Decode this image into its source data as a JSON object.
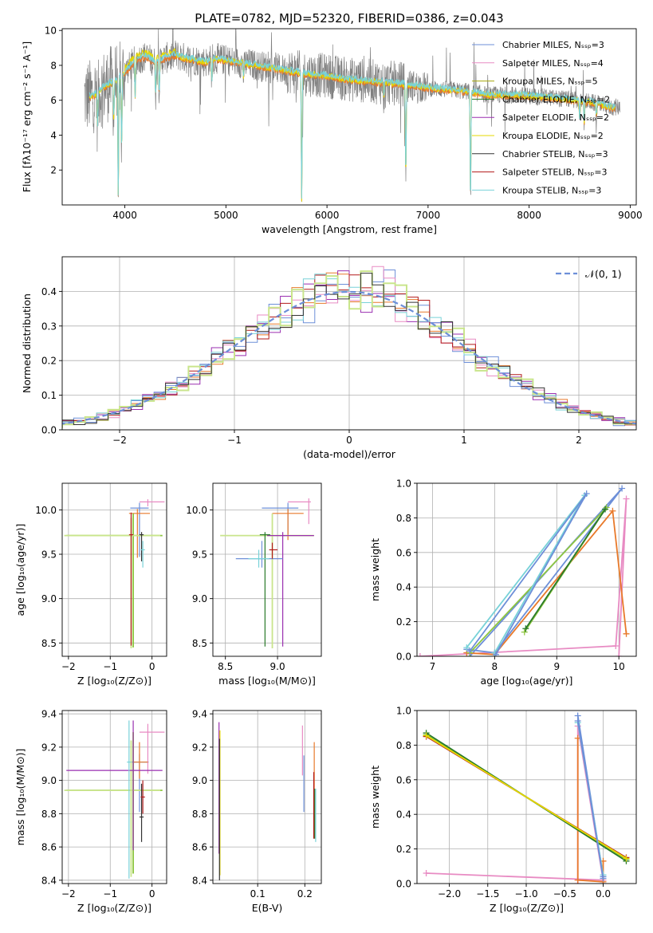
{
  "colors": {
    "chabrier_miles": "#6d8fd8",
    "salpeter_miles": "#e88bc3",
    "kroupa_miles": "#a6a60c",
    "chabrier_elodie": "#2a7a2a",
    "salpeter_elodie": "#9a2fb0",
    "kroupa_elodie": "#e6d800",
    "chabrier_stelib": "#333333",
    "salpeter_stelib": "#b21a1a",
    "kroupa_stelib": "#78d2d8",
    "data": "#808080",
    "orange": "#e8792a",
    "lime": "#8ec63f",
    "lightgreen": "#c9e58c",
    "gauss": "#6d8fd8"
  },
  "chart_data": [
    {
      "id": "spectrum",
      "type": "line",
      "title": "PLATE=0782, MJD=52320, FIBERID=0386, z=0.043",
      "xlabel": "wavelength [Angstrom, rest frame]",
      "ylabel": "Flux [fλ10⁻¹⁷ erg cm⁻² s⁻¹ A⁻¹]",
      "xlim": [
        3380,
        9060
      ],
      "ylim": [
        0,
        10.1
      ],
      "xticks": [
        "4000",
        "5000",
        "6000",
        "7000",
        "8000",
        "9000"
      ],
      "yticks": [
        "2",
        "4",
        "6",
        "8",
        "10"
      ],
      "legend_position": "top-right",
      "legend": [
        "Chabrier MILES, Nₛₛₚ=3",
        "Salpeter MILES, Nₛₛₚ=4",
        "Kroupa MILES, Nₛₛₚ=5",
        "Chabrier ELODIE, Nₛₛₚ=2",
        "Salpeter ELODIE, Nₛₛₚ=2",
        "Kroupa ELODIE, Nₛₛₚ=2",
        "Chabrier STELIB, Nₛₛₚ=3",
        "Salpeter STELIB, Nₛₛₚ=3",
        "Kroupa STELIB, Nₛₛₚ=3"
      ],
      "continuum": [
        [
          3650,
          6.2
        ],
        [
          3700,
          6.3
        ],
        [
          3800,
          6.8
        ],
        [
          3900,
          7.1
        ],
        [
          4000,
          7.6
        ],
        [
          4100,
          8.3
        ],
        [
          4200,
          8.5
        ],
        [
          4300,
          8.2
        ],
        [
          4400,
          8.4
        ],
        [
          4500,
          8.6
        ],
        [
          4600,
          8.4
        ],
        [
          4700,
          8.3
        ],
        [
          4800,
          8.2
        ],
        [
          4900,
          8.4
        ],
        [
          5000,
          8.3
        ],
        [
          5200,
          8.1
        ],
        [
          5400,
          7.9
        ],
        [
          5600,
          7.7
        ],
        [
          5800,
          7.5
        ],
        [
          6000,
          7.4
        ],
        [
          6200,
          7.2
        ],
        [
          6400,
          7.1
        ],
        [
          6600,
          7.0
        ],
        [
          6800,
          6.9
        ],
        [
          7000,
          6.7
        ],
        [
          7200,
          6.6
        ],
        [
          7400,
          6.5
        ],
        [
          7600,
          6.3
        ],
        [
          7800,
          6.3
        ],
        [
          8000,
          6.25
        ],
        [
          8200,
          6.15
        ],
        [
          8400,
          6.05
        ],
        [
          8600,
          5.9
        ],
        [
          8800,
          5.6
        ]
      ],
      "absorption_dips": [
        [
          3730,
          4.5
        ],
        [
          3890,
          5.0
        ],
        [
          3935,
          0.4
        ],
        [
          3968,
          3.2
        ],
        [
          4102,
          6.2
        ],
        [
          4305,
          6.3
        ],
        [
          4340,
          6.5
        ],
        [
          4861,
          7.2
        ],
        [
          5175,
          7.3
        ],
        [
          5750,
          0.3
        ],
        [
          6563,
          6.2
        ],
        [
          6780,
          1.8
        ],
        [
          7420,
          0.3
        ],
        [
          8500,
          5.0
        ],
        [
          8545,
          4.7
        ],
        [
          8665,
          5.2
        ]
      ],
      "data_range": [
        3600,
        8900
      ]
    },
    {
      "id": "residuals",
      "type": "histogram",
      "xlabel": "(data-model)/error",
      "ylabel": "Normed distribution",
      "xlim": [
        -2.5,
        2.5
      ],
      "ylim": [
        0,
        0.5
      ],
      "xticks": [
        "−2",
        "−1",
        "0",
        "1",
        "2"
      ],
      "yticks": [
        "0.0",
        "0.1",
        "0.2",
        "0.3",
        "0.4"
      ],
      "grid": true,
      "legend_position": "top-right",
      "legend": [
        "𝒩(0, 1)"
      ],
      "bin_width": 0.1,
      "gaussian": {
        "mean": 0,
        "sigma": 1
      }
    },
    {
      "id": "age_vs_Z",
      "type": "scatter",
      "xlabel": "Z [log₁₀(Z/Z⊙)]",
      "ylabel": "age  [log₁₀(age/yr)]",
      "xlim": [
        -2.15,
        0.35
      ],
      "ylim": [
        8.35,
        10.3
      ],
      "xticks": [
        "−2",
        "−1",
        "0"
      ],
      "yticks": [
        "8.5",
        "9.0",
        "9.5",
        "10.0"
      ],
      "grid": true,
      "errorbars": [
        {
          "x": -0.3,
          "y": 10.02,
          "xerr": [
            0.22,
            0.22
          ],
          "yerr": [
            0.55,
            0.06
          ],
          "c": "chabrier_miles"
        },
        {
          "x": -0.1,
          "y": 10.09,
          "xerr": [
            0.2,
            0.4
          ],
          "yerr": [
            0.05,
            0.03
          ],
          "c": "salpeter_miles"
        },
        {
          "x": -0.35,
          "y": 9.96,
          "xerr": [
            0.2,
            0.3
          ],
          "yerr": [
            0.5,
            0.05
          ],
          "c": "orange"
        },
        {
          "x": -0.45,
          "y": 9.71,
          "xerr": [
            1.6,
            0.7
          ],
          "yerr": [
            1.26,
            0.25
          ],
          "c": "lime"
        },
        {
          "x": -0.5,
          "y": 9.71,
          "xerr": [
            1.6,
            0.7
          ],
          "yerr": [
            1.27,
            0.2
          ],
          "c": "lightgreen"
        },
        {
          "x": -0.25,
          "y": 9.72,
          "xerr": [
            0.05,
            0.05
          ],
          "yerr": [
            0.3,
            0.03
          ],
          "c": "chabrier_stelib"
        },
        {
          "x": -0.22,
          "y": 9.55,
          "xerr": [
            0.05,
            0.05
          ],
          "yerr": [
            0.2,
            0.1
          ],
          "c": "kroupa_stelib"
        },
        {
          "x": -0.5,
          "y": 9.72,
          "xerr": [
            0.05,
            0.05
          ],
          "yerr": [
            1.25,
            0.25
          ],
          "c": "salpeter_stelib"
        }
      ]
    },
    {
      "id": "age_vs_mass",
      "type": "scatter",
      "xlabel": "mass [log₁₀(M/M⊙)]",
      "ylabel": "",
      "xlim": [
        8.38,
        9.42
      ],
      "ylim": [
        8.35,
        10.3
      ],
      "xticks": [
        "8.5",
        "9.0"
      ],
      "yticks": [
        "8.5",
        "9.0",
        "9.5",
        "10.0"
      ],
      "grid": true,
      "errorbars": [
        {
          "x": 9.1,
          "y": 10.02,
          "xerr": [
            0.25,
            0.1
          ],
          "yerr": [
            0.3,
            0.06
          ],
          "c": "chabrier_miles"
        },
        {
          "x": 9.3,
          "y": 10.09,
          "xerr": [
            0.2,
            0.02
          ],
          "yerr": [
            0.25,
            0.04
          ],
          "c": "salpeter_miles"
        },
        {
          "x": 9.1,
          "y": 9.96,
          "xerr": [
            0.15,
            0.15
          ],
          "yerr": [
            0.3,
            0.05
          ],
          "c": "orange"
        },
        {
          "x": 8.95,
          "y": 9.71,
          "xerr": [
            0.5,
            0.4
          ],
          "yerr": [
            1.27,
            0.25
          ],
          "c": "lightgreen"
        },
        {
          "x": 9.05,
          "y": 9.71,
          "xerr": [
            0.15,
            0.3
          ],
          "yerr": [
            1.25,
            0.04
          ],
          "c": "salpeter_elodie"
        },
        {
          "x": 8.85,
          "y": 9.45,
          "xerr": [
            0.25,
            0.2
          ],
          "yerr": [
            0.1,
            0.2
          ],
          "c": "chabrier_miles"
        },
        {
          "x": 8.88,
          "y": 9.72,
          "xerr": [
            0.05,
            0.05
          ],
          "yerr": [
            1.26,
            0.03
          ],
          "c": "chabrier_elodie"
        },
        {
          "x": 8.95,
          "y": 9.55,
          "xerr": [
            0.03,
            0.05
          ],
          "yerr": [
            0.1,
            0.08
          ],
          "c": "salpeter_stelib"
        },
        {
          "x": 8.82,
          "y": 9.45,
          "xerr": [
            0.1,
            0.1
          ],
          "yerr": [
            0.1,
            0.1
          ],
          "c": "kroupa_stelib"
        }
      ]
    },
    {
      "id": "weight_vs_age",
      "type": "line",
      "xlabel": "age  [log₁₀(age/yr)]",
      "ylabel": "mass weight",
      "xlim": [
        6.75,
        10.28
      ],
      "ylim": [
        0,
        1
      ],
      "xticks": [
        "7",
        "8",
        "9",
        "10"
      ],
      "yticks": [
        "0.0",
        "0.2",
        "0.4",
        "0.6",
        "0.8",
        "1.0"
      ],
      "grid": true,
      "series": [
        {
          "c": "salpeter_miles",
          "points": [
            [
              6.8,
              0.0
            ],
            [
              9.95,
              0.06
            ],
            [
              10.12,
              0.91
            ],
            [
              10.0,
              0.0
            ]
          ]
        },
        {
          "c": "chabrier_miles",
          "points": [
            [
              7.55,
              0.04
            ],
            [
              8.0,
              0.02
            ],
            [
              10.05,
              0.97
            ],
            [
              7.6,
              0.0
            ]
          ]
        },
        {
          "c": "orange",
          "points": [
            [
              7.55,
              0.02
            ],
            [
              8.0,
              0.01
            ],
            [
              9.9,
              0.84
            ],
            [
              10.12,
              0.13
            ]
          ]
        },
        {
          "c": "lime",
          "points": [
            [
              8.48,
              0.14
            ],
            [
              9.8,
              0.86
            ],
            [
              7.6,
              0.02
            ]
          ]
        },
        {
          "c": "chabrier_elodie",
          "points": [
            [
              8.5,
              0.16
            ],
            [
              9.78,
              0.85
            ]
          ]
        },
        {
          "c": "kroupa_stelib",
          "points": [
            [
              7.55,
              0.05
            ],
            [
              9.45,
              0.93
            ],
            [
              8.0,
              0.02
            ]
          ]
        },
        {
          "c": "chabrier_miles",
          "points": [
            [
              7.6,
              0.03
            ],
            [
              9.48,
              0.94
            ],
            [
              8.02,
              0.01
            ]
          ]
        }
      ]
    },
    {
      "id": "mass_vs_Z",
      "type": "scatter",
      "xlabel": "Z [log₁₀(Z/Z⊙)]",
      "ylabel": "mass [log₁₀(M/M⊙)]",
      "xlim": [
        -2.15,
        0.35
      ],
      "ylim": [
        8.38,
        9.42
      ],
      "xticks": [
        "−2",
        "−1",
        "0"
      ],
      "yticks": [
        "8.4",
        "8.6",
        "8.8",
        "9.0",
        "9.2",
        "9.4"
      ],
      "grid": true,
      "errorbars": [
        {
          "x": -0.3,
          "y": 9.11,
          "xerr": [
            0.22,
            0.22
          ],
          "yerr": [
            0.3,
            0.05
          ],
          "c": "chabrier_miles"
        },
        {
          "x": -0.1,
          "y": 9.29,
          "xerr": [
            0.2,
            0.4
          ],
          "yerr": [
            0.25,
            0.05
          ],
          "c": "salpeter_miles"
        },
        {
          "x": -0.3,
          "y": 9.11,
          "xerr": [
            0.15,
            0.2
          ],
          "yerr": [
            0.1,
            0.12
          ],
          "c": "orange"
        },
        {
          "x": -0.45,
          "y": 8.94,
          "xerr": [
            1.6,
            0.7
          ],
          "yerr": [
            0.5,
            0.35
          ],
          "c": "lime"
        },
        {
          "x": -0.5,
          "y": 8.94,
          "xerr": [
            1.6,
            0.7
          ],
          "yerr": [
            0.52,
            0.3
          ],
          "c": "lightgreen"
        },
        {
          "x": -0.45,
          "y": 9.06,
          "xerr": [
            1.6,
            0.7
          ],
          "yerr": [
            0.48,
            0.3
          ],
          "c": "salpeter_elodie"
        },
        {
          "x": -0.25,
          "y": 8.78,
          "xerr": [
            0.05,
            0.05
          ],
          "yerr": [
            0.15,
            0.2
          ],
          "c": "chabrier_stelib"
        },
        {
          "x": -0.22,
          "y": 8.9,
          "xerr": [
            0.05,
            0.05
          ],
          "yerr": [
            0.1,
            0.1
          ],
          "c": "salpeter_stelib"
        },
        {
          "x": -0.55,
          "y": 9.11,
          "xerr": [
            0.05,
            0.05
          ],
          "yerr": [
            0.7,
            0.25
          ],
          "c": "kroupa_stelib"
        }
      ]
    },
    {
      "id": "mass_vs_ebv",
      "type": "scatter",
      "xlabel": "E(B-V)",
      "ylabel": "",
      "xlim": [
        0.005,
        0.235
      ],
      "ylim": [
        8.38,
        9.42
      ],
      "xticks": [
        "0.1",
        "0.2"
      ],
      "yticks": [
        "8.4",
        "8.6",
        "8.8",
        "9.0",
        "9.2",
        "9.4"
      ],
      "grid": true,
      "errorbars": [
        {
          "x": 0.018,
          "y": 8.9,
          "xerr": [
            0,
            0
          ],
          "yerr": [
            0.34,
            0.45
          ],
          "c": "salpeter_elodie"
        },
        {
          "x": 0.02,
          "y": 8.85,
          "xerr": [
            0,
            0
          ],
          "yerr": [
            0.42,
            0.45
          ],
          "c": "kroupa_elodie"
        },
        {
          "x": 0.019,
          "y": 8.8,
          "xerr": [
            0,
            0
          ],
          "yerr": [
            0.4,
            0.45
          ],
          "c": "chabrier_stelib"
        },
        {
          "x": 0.195,
          "y": 9.18,
          "xerr": [
            0,
            0
          ],
          "yerr": [
            0.15,
            0.15
          ],
          "c": "salpeter_miles"
        },
        {
          "x": 0.198,
          "y": 8.95,
          "xerr": [
            0,
            0
          ],
          "yerr": [
            0.14,
            0.2
          ],
          "c": "chabrier_miles"
        },
        {
          "x": 0.22,
          "y": 8.95,
          "xerr": [
            0,
            0
          ],
          "yerr": [
            0.3,
            0.28
          ],
          "c": "orange"
        },
        {
          "x": 0.221,
          "y": 8.85,
          "xerr": [
            0,
            0
          ],
          "yerr": [
            0.2,
            0.1
          ],
          "c": "chabrier_elodie"
        },
        {
          "x": 0.219,
          "y": 8.9,
          "xerr": [
            0,
            0
          ],
          "yerr": [
            0.25,
            0.15
          ],
          "c": "salpeter_stelib"
        },
        {
          "x": 0.223,
          "y": 8.85,
          "xerr": [
            0,
            0
          ],
          "yerr": [
            0.22,
            0.1
          ],
          "c": "kroupa_stelib"
        }
      ]
    },
    {
      "id": "weight_vs_Z",
      "type": "line",
      "xlabel": "Z [log₁₀(Z/Z⊙)]",
      "ylabel": "mass weight",
      "xlim": [
        -2.42,
        0.43
      ],
      "ylim": [
        0,
        1
      ],
      "xticks": [
        "−2.0",
        "−1.5",
        "−1.0",
        "−0.5",
        "0.0"
      ],
      "yticks": [
        "0.0",
        "0.2",
        "0.4",
        "0.6",
        "0.8",
        "1.0"
      ],
      "grid": true,
      "series": [
        {
          "c": "salpeter_miles",
          "points": [
            [
              -2.3,
              0.06
            ],
            [
              0.0,
              0.02
            ],
            [
              -0.33,
              0.91
            ],
            [
              -0.33,
              0.0
            ]
          ]
        },
        {
          "c": "chabrier_miles",
          "points": [
            [
              -0.33,
              0.97
            ],
            [
              0.0,
              0.04
            ],
            [
              0.0,
              0.0
            ]
          ]
        },
        {
          "c": "orange",
          "points": [
            [
              -0.33,
              0.84
            ],
            [
              -0.33,
              0.02
            ],
            [
              0.0,
              0.01
            ],
            [
              0.0,
              0.13
            ]
          ]
        },
        {
          "c": "salpeter_stelib",
          "points": [
            [
              -2.3,
              0.85
            ],
            [
              0.3,
              0.15
            ]
          ]
        },
        {
          "c": "lime",
          "points": [
            [
              -2.3,
              0.86
            ],
            [
              0.3,
              0.14
            ]
          ]
        },
        {
          "c": "chabrier_elodie",
          "points": [
            [
              -2.3,
              0.87
            ],
            [
              0.3,
              0.13
            ]
          ]
        },
        {
          "c": "kroupa_elodie",
          "points": [
            [
              -2.3,
              0.855
            ],
            [
              0.3,
              0.145
            ]
          ]
        },
        {
          "c": "kroupa_stelib",
          "points": [
            [
              -0.33,
              0.93
            ],
            [
              0.0,
              0.05
            ]
          ]
        },
        {
          "c": "chabrier_miles",
          "points": [
            [
              -0.33,
              0.94
            ],
            [
              0.0,
              0.03
            ]
          ]
        }
      ]
    }
  ]
}
